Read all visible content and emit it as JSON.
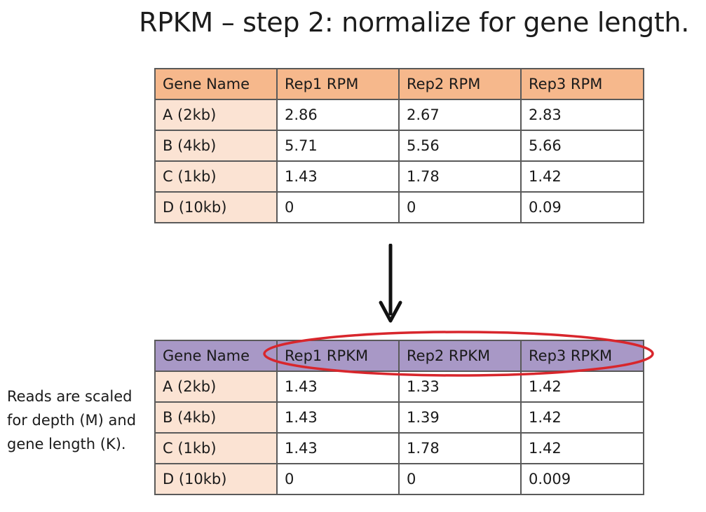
{
  "title": "RPKM – step 2: normalize for gene length.",
  "rpm_table": {
    "headers": [
      "Gene Name",
      "Rep1 RPM",
      "Rep2 RPM",
      "Rep3 RPM"
    ],
    "rows": [
      [
        "A (2kb)",
        "2.86",
        "2.67",
        "2.83"
      ],
      [
        "B (4kb)",
        "5.71",
        "5.56",
        "5.66"
      ],
      [
        "C (1kb)",
        "1.43",
        "1.78",
        "1.42"
      ],
      [
        "D (10kb)",
        "0",
        "0",
        "0.09"
      ]
    ]
  },
  "rpkm_table": {
    "headers": [
      "Gene Name",
      "Rep1 RPKM",
      "Rep2 RPKM",
      "Rep3 RPKM"
    ],
    "rows": [
      [
        "A (2kb)",
        "1.43",
        "1.33",
        "1.42"
      ],
      [
        "B (4kb)",
        "1.43",
        "1.39",
        "1.42"
      ],
      [
        "C (1kb)",
        "1.43",
        "1.78",
        "1.42"
      ],
      [
        "D (10kb)",
        "0",
        "0",
        "0.009"
      ]
    ]
  },
  "side_note": "Reads are scaled for depth (M) and gene length (K).",
  "colors": {
    "rpm_header": "#f6b88c",
    "rpkm_header": "#a898c6",
    "gene_cell": "#fbe3d3",
    "highlight_ellipse": "#d8262c",
    "arrow": "#111111"
  },
  "icons": {
    "arrow": "down-arrow-icon",
    "highlight": "highlight-ellipse"
  }
}
